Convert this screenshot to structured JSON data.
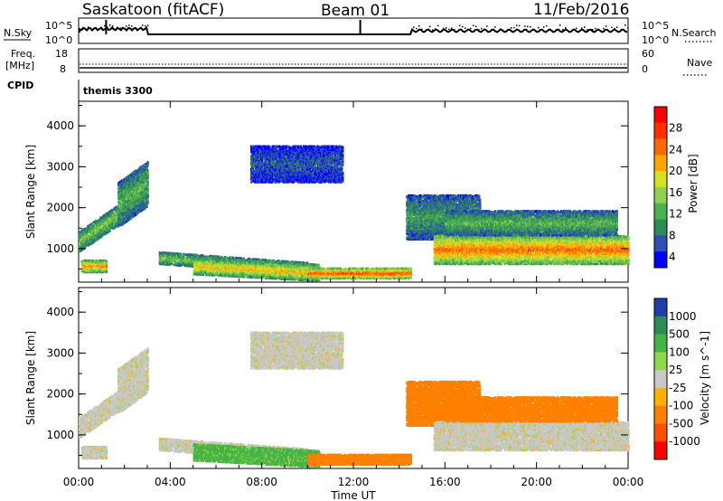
{
  "header": {
    "station": "Saskatoon (fitACF)",
    "beam": "Beam 01",
    "date": "11/Feb/2016"
  },
  "summary_panels": {
    "nsky_label": "N.Sky",
    "nsky_ticks": [
      "10^5",
      "10^0"
    ],
    "nsearch_label": "N.Search",
    "nsearch_ticks": [
      "10^5",
      "10^0"
    ],
    "freq_label": [
      "Freq.",
      "[MHz]"
    ],
    "freq_ticks": [
      "18",
      "8"
    ],
    "nave_label": "Nave",
    "nave_ticks": [
      "60",
      "0"
    ],
    "cpid_label": "CPID",
    "cpid_value": "themis 3300"
  },
  "colors": {
    "power_scale": [
      "#0000ff",
      "#2a4fb5",
      "#2e8b57",
      "#4caf50",
      "#90d050",
      "#d8e020",
      "#ffa500",
      "#ff6a00",
      "#ff3000",
      "#ff0000"
    ],
    "velocity_scale": [
      "#1f3fa8",
      "#2e8b57",
      "#45b345",
      "#8fd84a",
      "#c8c8c8",
      "#ffb000",
      "#ff8000",
      "#ff5000",
      "#ff0000"
    ]
  },
  "chart_data": [
    {
      "type": "heatmap",
      "name": "power",
      "xlabel": "Time UT",
      "ylabel": "Slant Range [km]",
      "colorbar_label": "Power [dB]",
      "colorbar_ticks": [
        "28",
        "24",
        "20",
        "16",
        "12",
        "8",
        "4"
      ],
      "colorbar_values": [
        28,
        24,
        20,
        16,
        12,
        8,
        4
      ],
      "x_ticks": [
        "00:00",
        "04:00",
        "08:00",
        "12:00",
        "16:00",
        "20:00",
        "00:00"
      ],
      "xlim_hours": [
        0,
        24
      ],
      "y_ticks": [
        "4000",
        "3000",
        "2000",
        "1000"
      ],
      "y_tick_values": [
        4000,
        3000,
        2000,
        1000
      ],
      "ylim_km": [
        180,
        4600
      ],
      "echo_regions": [
        {
          "t0": 0.0,
          "t1": 2.9,
          "r0": 900,
          "r1": 1400,
          "slope": 380,
          "power": 14
        },
        {
          "t0": 0.1,
          "t1": 1.2,
          "r0": 400,
          "r1": 700,
          "slope": 0,
          "power": 22
        },
        {
          "t0": 1.7,
          "t1": 3.0,
          "r0": 1500,
          "r1": 2600,
          "slope": 400,
          "power": 12
        },
        {
          "t0": 3.5,
          "t1": 10.0,
          "r0": 600,
          "r1": 900,
          "slope": -40,
          "power": 14
        },
        {
          "t0": 5.0,
          "t1": 10.5,
          "r0": 350,
          "r1": 750,
          "slope": -30,
          "power": 20
        },
        {
          "t0": 10.0,
          "t1": 14.5,
          "r0": 250,
          "r1": 500,
          "slope": 0,
          "power": 26
        },
        {
          "t0": 7.5,
          "t1": 11.5,
          "r0": 2600,
          "r1": 3500,
          "slope": 0,
          "power": 6
        },
        {
          "t0": 14.3,
          "t1": 17.5,
          "r0": 1200,
          "r1": 2300,
          "slope": 0,
          "power": 10
        },
        {
          "t0": 15.5,
          "t1": 24.0,
          "r0": 600,
          "r1": 1300,
          "slope": 0,
          "power": 24
        },
        {
          "t0": 16.0,
          "t1": 23.5,
          "r0": 1300,
          "r1": 1900,
          "slope": 0,
          "power": 12
        }
      ]
    },
    {
      "type": "heatmap",
      "name": "velocity",
      "xlabel": "Time UT",
      "ylabel": "Slant Range [km]",
      "colorbar_label": "Velocity [m s^-1]",
      "colorbar_ticks": [
        "1000",
        "500",
        "100",
        "25",
        "-25",
        "-100",
        "-500",
        "-1000"
      ],
      "colorbar_values": [
        1000,
        500,
        100,
        25,
        -25,
        -100,
        -500,
        -1000
      ],
      "x_ticks": [
        "00:00",
        "04:00",
        "08:00",
        "12:00",
        "16:00",
        "20:00",
        "00:00"
      ],
      "xlim_hours": [
        0,
        24
      ],
      "y_ticks": [
        "4000",
        "3000",
        "2000",
        "1000"
      ],
      "y_tick_values": [
        4000,
        3000,
        2000,
        1000
      ],
      "ylim_km": [
        180,
        4600
      ],
      "echo_regions": [
        {
          "t0": 0.0,
          "t1": 2.9,
          "r0": 900,
          "r1": 1400,
          "slope": 380,
          "velocity": 0
        },
        {
          "t0": 0.1,
          "t1": 1.2,
          "r0": 400,
          "r1": 700,
          "slope": 0,
          "velocity": 0
        },
        {
          "t0": 1.7,
          "t1": 3.0,
          "r0": 1500,
          "r1": 2600,
          "slope": 400,
          "velocity": 0
        },
        {
          "t0": 3.5,
          "t1": 10.0,
          "r0": 600,
          "r1": 900,
          "slope": -40,
          "velocity": 0
        },
        {
          "t0": 5.0,
          "t1": 10.5,
          "r0": 350,
          "r1": 750,
          "slope": -30,
          "velocity": 120
        },
        {
          "t0": 10.0,
          "t1": 14.5,
          "r0": 250,
          "r1": 500,
          "slope": 0,
          "velocity": -150
        },
        {
          "t0": 7.5,
          "t1": 11.5,
          "r0": 2600,
          "r1": 3500,
          "slope": 0,
          "velocity": 0
        },
        {
          "t0": 14.3,
          "t1": 17.5,
          "r0": 1200,
          "r1": 2300,
          "slope": 0,
          "velocity": -200
        },
        {
          "t0": 15.5,
          "t1": 24.0,
          "r0": 600,
          "r1": 1300,
          "slope": 0,
          "velocity": 0
        },
        {
          "t0": 16.0,
          "t1": 23.5,
          "r0": 1300,
          "r1": 1900,
          "slope": 0,
          "velocity": -300
        }
      ]
    }
  ]
}
